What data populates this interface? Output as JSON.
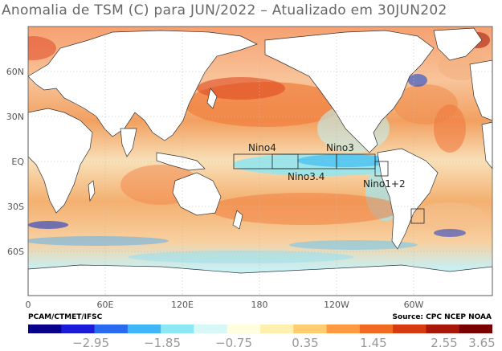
{
  "title": "Anomalia de TSM (C) para JUN/2022 – Atualizado em 30JUN202",
  "map": {
    "lat_labels": [
      "60N",
      "30N",
      "EQ",
      "30S",
      "60S"
    ],
    "lon_labels": [
      "0",
      "60E",
      "120E",
      "180",
      "120W",
      "60W"
    ],
    "regions": [
      {
        "label": "Nino4"
      },
      {
        "label": "Nino3"
      },
      {
        "label": "Nino3.4"
      },
      {
        "label": "Nino1+2"
      }
    ]
  },
  "credits": {
    "left": "PCAM/CTMET/IFSC",
    "right": "Source: CPC NCEP NOAA"
  },
  "colorbar": {
    "labels": [
      "−2.95",
      "−1.85",
      "−0.75",
      "0.35",
      "1.45",
      "2.55",
      "3.65"
    ],
    "colors": [
      "#08008a",
      "#1a1ad8",
      "#2a6af0",
      "#3fb6f5",
      "#8de8f5",
      "#d8f8f8",
      "#ffffe0",
      "#fff0b0",
      "#ffcc70",
      "#ff9a40",
      "#f06a20",
      "#d83a10",
      "#a81808",
      "#7a0000"
    ]
  }
}
